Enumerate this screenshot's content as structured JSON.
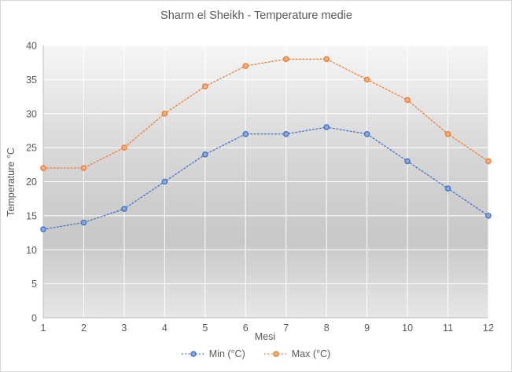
{
  "chart_data": {
    "type": "line",
    "title": "Sharm el Sheikh - Temperature medie",
    "xlabel": "Mesi",
    "ylabel": "Temperature °C",
    "categories": [
      1,
      2,
      3,
      4,
      5,
      6,
      7,
      8,
      9,
      10,
      11,
      12
    ],
    "series": [
      {
        "name": "Min (°C)",
        "color": "#4472C4",
        "marker_fill": "#8FAADC",
        "values": [
          13,
          14,
          16,
          20,
          24,
          27,
          27,
          28,
          27,
          23,
          19,
          15
        ]
      },
      {
        "name": "Max (°C)",
        "color": "#ED7D31",
        "marker_fill": "#F4B183",
        "values": [
          22,
          22,
          25,
          30,
          34,
          37,
          38,
          38,
          35,
          32,
          27,
          23
        ]
      }
    ],
    "ylim": [
      0,
      40
    ],
    "yticks": [
      0,
      5,
      10,
      15,
      20,
      25,
      30,
      35,
      40
    ],
    "grid": "both",
    "line_style": "dotted",
    "legend_position": "bottom"
  },
  "colors": {
    "text": "#595959",
    "gridline": "#ffffff",
    "axis_line": "#bfbfbf",
    "chart_border": "#d6d6d6",
    "plot_gradient": [
      "#f6f6f6",
      "#dcdcdc",
      "#cfcfcf",
      "#c8c8c8",
      "#e7e7e7"
    ]
  }
}
